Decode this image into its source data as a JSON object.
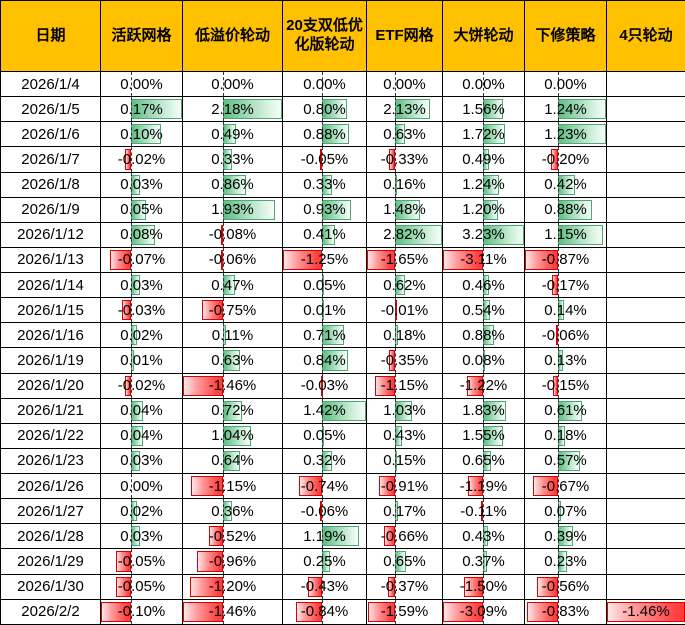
{
  "colors": {
    "header_bg": "#FFC000",
    "positive_bar": "#5FBE83",
    "positive_bar_border": "#4EA872",
    "negative_bar": "#FF3F3F",
    "negative_bar_border": "#DC0000",
    "grid_border": "#000000"
  },
  "chart_data": {
    "type": "table",
    "unit": "%",
    "legend_note": "conditional-formatting data bars: green = positive (extends right of dashed axis), red = negative (extends left), scaled per column",
    "columns": [
      "日期",
      "活跃网格",
      "低溢价轮动",
      "20支双低优化版轮动",
      "ETF网格",
      "大饼轮动",
      "下修策略",
      "4只轮动"
    ],
    "rows": [
      {
        "date": "2026/1/4",
        "values": [
          0.0,
          0.0,
          0.0,
          0.0,
          0.0,
          0.0,
          null
        ]
      },
      {
        "date": "2026/1/5",
        "values": [
          0.17,
          2.18,
          0.8,
          2.13,
          1.56,
          1.24,
          null
        ]
      },
      {
        "date": "2026/1/6",
        "values": [
          0.1,
          0.49,
          0.88,
          0.63,
          1.72,
          1.23,
          null
        ]
      },
      {
        "date": "2026/1/7",
        "values": [
          -0.02,
          0.33,
          -0.05,
          -0.33,
          0.49,
          -0.2,
          null
        ]
      },
      {
        "date": "2026/1/8",
        "values": [
          0.03,
          0.86,
          0.33,
          0.16,
          1.24,
          0.42,
          null
        ]
      },
      {
        "date": "2026/1/9",
        "values": [
          0.05,
          1.93,
          0.93,
          1.48,
          1.2,
          0.88,
          null
        ]
      },
      {
        "date": "2026/1/12",
        "values": [
          0.08,
          -0.08,
          0.41,
          2.82,
          3.23,
          1.15,
          null
        ]
      },
      {
        "date": "2026/1/13",
        "values": [
          -0.07,
          -0.06,
          -1.25,
          -1.65,
          -3.11,
          -0.87,
          null
        ]
      },
      {
        "date": "2026/1/14",
        "values": [
          0.03,
          0.47,
          0.05,
          0.62,
          0.46,
          -0.17,
          null
        ]
      },
      {
        "date": "2026/1/15",
        "values": [
          -0.03,
          -0.75,
          0.01,
          -0.01,
          0.54,
          0.14,
          null
        ]
      },
      {
        "date": "2026/1/16",
        "values": [
          0.02,
          0.11,
          0.71,
          0.18,
          0.88,
          -0.06,
          null
        ]
      },
      {
        "date": "2026/1/19",
        "values": [
          0.01,
          0.63,
          0.84,
          -0.35,
          0.08,
          0.13,
          null
        ]
      },
      {
        "date": "2026/1/20",
        "values": [
          -0.02,
          -1.46,
          -0.03,
          -1.15,
          -1.22,
          -0.15,
          null
        ]
      },
      {
        "date": "2026/1/21",
        "values": [
          0.04,
          0.72,
          1.42,
          1.03,
          1.83,
          0.61,
          null
        ]
      },
      {
        "date": "2026/1/22",
        "values": [
          0.04,
          1.04,
          0.05,
          0.43,
          1.55,
          0.18,
          null
        ]
      },
      {
        "date": "2026/1/23",
        "values": [
          0.03,
          0.64,
          0.32,
          0.15,
          0.65,
          0.57,
          null
        ]
      },
      {
        "date": "2026/1/26",
        "values": [
          0.0,
          -1.15,
          -0.74,
          -0.91,
          -1.19,
          -0.67,
          null
        ]
      },
      {
        "date": "2026/1/27",
        "values": [
          0.02,
          0.36,
          -0.06,
          0.17,
          -0.11,
          0.07,
          null
        ]
      },
      {
        "date": "2026/1/28",
        "values": [
          0.03,
          -0.52,
          1.19,
          -0.66,
          0.43,
          0.39,
          null
        ]
      },
      {
        "date": "2026/1/29",
        "values": [
          -0.05,
          -0.96,
          0.25,
          0.65,
          0.37,
          0.23,
          null
        ]
      },
      {
        "date": "2026/1/30",
        "values": [
          -0.05,
          -1.2,
          -0.43,
          -0.37,
          -1.5,
          -0.56,
          null
        ]
      },
      {
        "date": "2026/2/2",
        "values": [
          -0.1,
          -1.46,
          -0.84,
          -1.59,
          -3.09,
          -0.83,
          -1.46
        ]
      }
    ]
  }
}
